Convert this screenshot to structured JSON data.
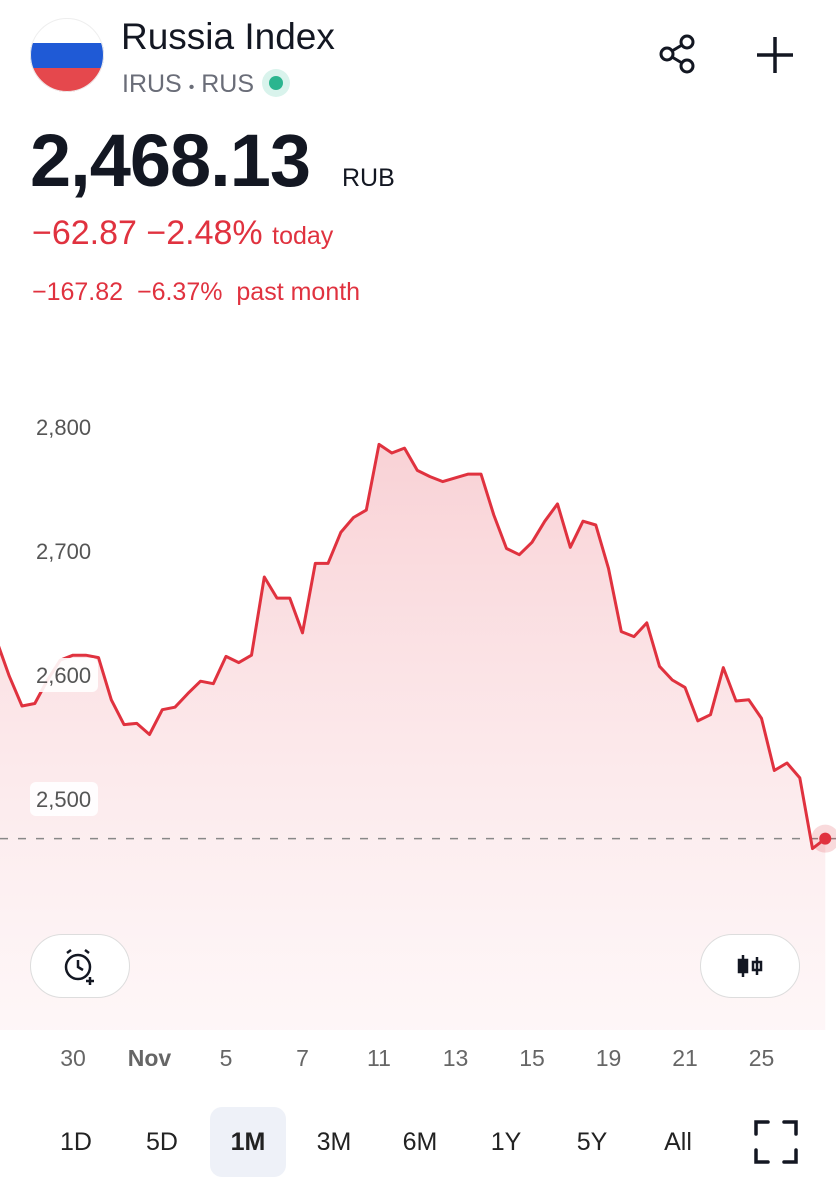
{
  "header": {
    "title": "Russia Index",
    "ticker": "IRUS",
    "separator": "•",
    "exchange": "RUS",
    "price": "2,468.13",
    "currency": "RUB",
    "day_change": "−62.87",
    "day_change_pct": "−2.48%",
    "day_label": "today",
    "month_change": "−167.82",
    "month_change_pct": "−6.37%",
    "month_label": "past month"
  },
  "ranges": {
    "items": [
      "1D",
      "5D",
      "1M",
      "3M",
      "6M",
      "1Y",
      "5Y",
      "All"
    ],
    "selected": "1M"
  },
  "chart_data": {
    "type": "line",
    "color": "#e0323f",
    "categories": [
      null,
      null,
      null,
      null,
      null,
      null,
      "30",
      null,
      null,
      null,
      null,
      null,
      "Nov",
      null,
      null,
      null,
      null,
      null,
      "5",
      null,
      null,
      null,
      null,
      null,
      "7",
      null,
      null,
      null,
      null,
      null,
      "11",
      null,
      null,
      null,
      null,
      null,
      "13",
      null,
      null,
      null,
      null,
      null,
      "15",
      null,
      null,
      null,
      null,
      null,
      "19",
      null,
      null,
      null,
      null,
      null,
      "21",
      null,
      null,
      null,
      null,
      null,
      "25",
      null,
      null,
      null,
      null,
      null
    ],
    "series": [
      {
        "name": "Russia Index",
        "color": "#e0323f",
        "values": [
          2628,
          2599,
          2575,
          2577,
          2596,
          2612,
          2616,
          2616,
          2614,
          2580,
          2560,
          2561,
          2552,
          2572,
          2574,
          2585,
          2595,
          2593,
          2615,
          2610,
          2616,
          2679,
          2662,
          2662,
          2634,
          2690,
          2690,
          2715,
          2727,
          2733,
          2786,
          2779,
          2783,
          2765,
          2760,
          2756,
          2759,
          2762,
          2762,
          2729,
          2702,
          2697,
          2707,
          2724,
          2738,
          2703,
          2724,
          2721,
          2686,
          2635,
          2631,
          2642,
          2607,
          2596,
          2590,
          2563,
          2568,
          2606,
          2579,
          2580,
          2565,
          2523,
          2529,
          2517,
          2460,
          2468
        ]
      }
    ],
    "ylim": [
      2310,
      2900
    ],
    "yticks": [
      {
        "value": 2500,
        "label": "2,500"
      },
      {
        "value": 2600,
        "label": "2,600"
      },
      {
        "value": 2700,
        "label": "2,700"
      },
      {
        "value": 2800,
        "label": "2,800"
      }
    ],
    "grid": false
  }
}
